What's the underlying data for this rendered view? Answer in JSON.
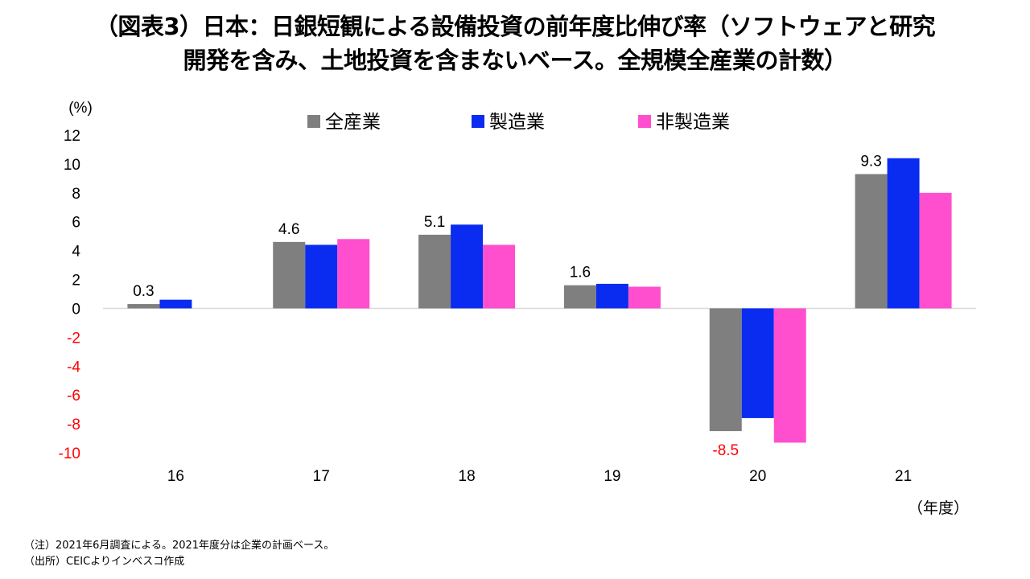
{
  "title_lines": [
    "（図表3）日本：日銀短観による設備投資の前年度比伸び率（ソフトウェアと研究",
    "開発を含み、土地投資を含まないベース。全規模全産業の計数）"
  ],
  "notes": [
    "（注）2021年6月調査による。2021年度分は企業の計画ベース。",
    "（出所）CEICよりインベスコ作成"
  ],
  "chart_data": {
    "type": "bar",
    "categories": [
      "16",
      "17",
      "18",
      "19",
      "20",
      "21"
    ],
    "series": [
      {
        "name": "全産業",
        "color": "#7f7f7f",
        "values": [
          0.3,
          4.6,
          5.1,
          1.6,
          -8.5,
          9.3
        ]
      },
      {
        "name": "製造業",
        "color": "#0a2cf0",
        "values": [
          0.6,
          4.4,
          5.8,
          1.7,
          -7.6,
          10.4
        ]
      },
      {
        "name": "非製造業",
        "color": "#ff4fcf",
        "values": [
          null,
          4.8,
          4.4,
          1.5,
          -9.3,
          8.0
        ]
      }
    ],
    "data_labels": [
      "0.3",
      "4.6",
      "5.1",
      "1.6",
      "-8.5",
      "9.3"
    ],
    "y_unit_label": "(%)",
    "x_unit_label": "（年度）",
    "ylim": [
      -10,
      12
    ],
    "y_ticks": [
      "12",
      "10",
      "8",
      "6",
      "4",
      "2",
      "0",
      "-2",
      "-4",
      "-6",
      "-8",
      "-10"
    ],
    "negative_label_color": "#ff0000",
    "grid": false,
    "legend_position": "top-center"
  }
}
